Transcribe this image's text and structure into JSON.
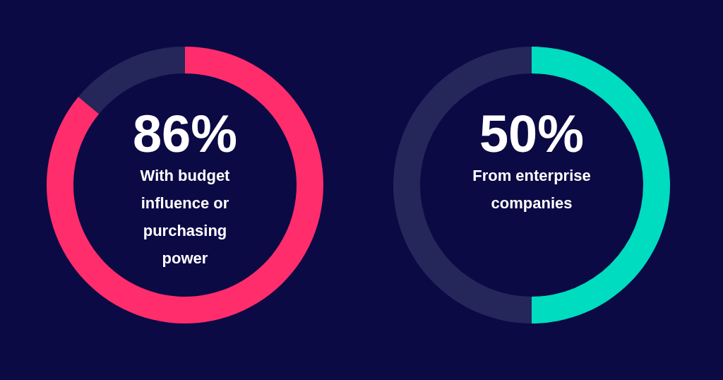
{
  "chart_data": [
    {
      "type": "donut",
      "title": "With budget influence or purchasing power",
      "categories": [
        null,
        null
      ],
      "values": [
        86,
        14
      ],
      "colors": [
        "#ff2d6b",
        "#25275a"
      ],
      "value_labels": [
        "86%",
        null
      ]
    },
    {
      "type": "donut",
      "title": "From enterprise companies",
      "categories": [
        null,
        null
      ],
      "values": [
        50,
        50
      ],
      "colors": [
        "#00dcbf",
        "#25275a"
      ],
      "value_labels": [
        "50%",
        null
      ]
    }
  ]
}
